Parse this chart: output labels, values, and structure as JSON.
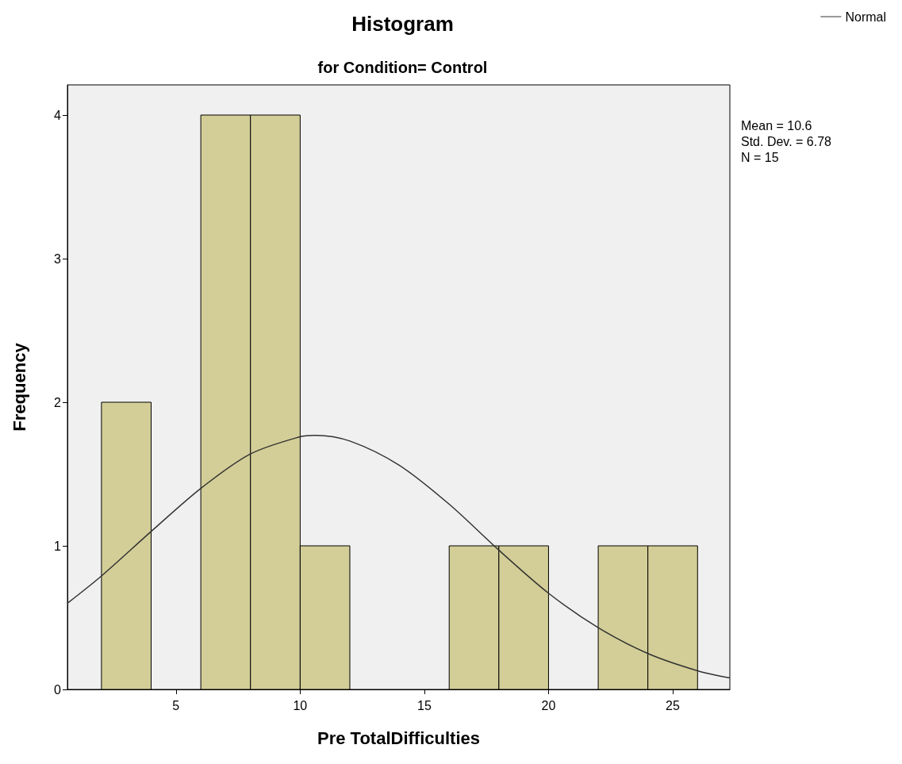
{
  "chart_data": {
    "type": "histogram",
    "title": "Histogram",
    "subtitle": "for Condition= Control",
    "xlabel": "Pre TotalDifficulties",
    "ylabel": "Frequency",
    "bins": [
      2,
      4,
      6,
      8,
      10,
      12,
      14,
      16,
      18,
      20,
      22,
      24,
      26
    ],
    "values": [
      2,
      0,
      4,
      4,
      1,
      0,
      0,
      1,
      1,
      0,
      1,
      1
    ],
    "color": "#d3ce97",
    "series": [
      {
        "type": "line",
        "name": "Normal",
        "color": "#333333",
        "marker": "none",
        "x": [
          0.63,
          2,
          4,
          6,
          8,
          10,
          10.6,
          12,
          14,
          16,
          18,
          20,
          22,
          24,
          26,
          27.3
        ],
        "values": [
          0.6,
          0.79,
          1.1,
          1.4,
          1.64,
          1.76,
          1.77,
          1.73,
          1.56,
          1.29,
          0.97,
          0.67,
          0.43,
          0.25,
          0.13,
          0.08
        ]
      }
    ],
    "xlim": [
      0.63,
      27.3
    ],
    "xticks": [
      5,
      10,
      15,
      20,
      25
    ],
    "ylim": [
      0,
      4.21
    ],
    "yticks": [
      0,
      1,
      2,
      3,
      4
    ],
    "grid": false,
    "legend": "top right",
    "annotations": [
      "Mean = 10.6",
      "Std. Dev. = 6.78",
      "N = 15"
    ]
  }
}
